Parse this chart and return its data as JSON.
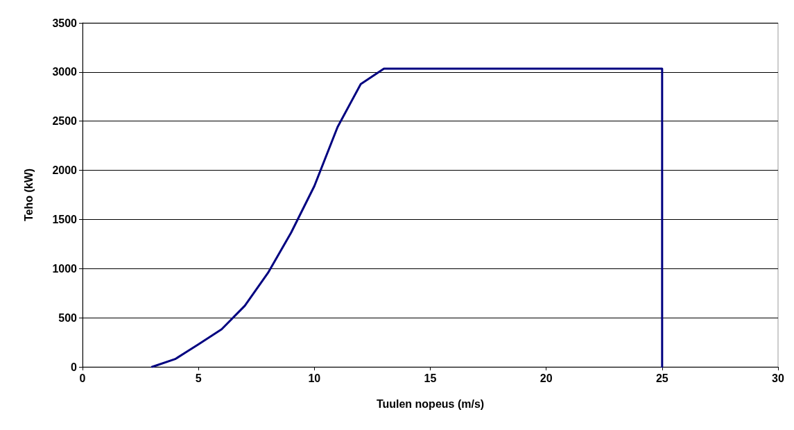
{
  "chart_data": {
    "type": "line",
    "xlabel": "Tuulen nopeus (m/s)",
    "ylabel": "Teho (kW)",
    "x": [
      3,
      4,
      5,
      6,
      7,
      8,
      9,
      10,
      11,
      12,
      13,
      25,
      25
    ],
    "series": [
      {
        "color": "#000080",
        "values": [
          0,
          80,
          230,
          383,
          622,
          957,
          1367,
          1840,
          2440,
          2877,
          3035,
          3035,
          0
        ]
      }
    ],
    "xlim": [
      0,
      30
    ],
    "xticks": [
      0,
      5,
      10,
      15,
      20,
      25,
      30
    ],
    "ylim": [
      0,
      3500
    ],
    "yticks": [
      0,
      500,
      1000,
      1500,
      2000,
      2500,
      3000,
      3500
    ],
    "grid": "y",
    "marker": "none",
    "line_style": "solid"
  }
}
